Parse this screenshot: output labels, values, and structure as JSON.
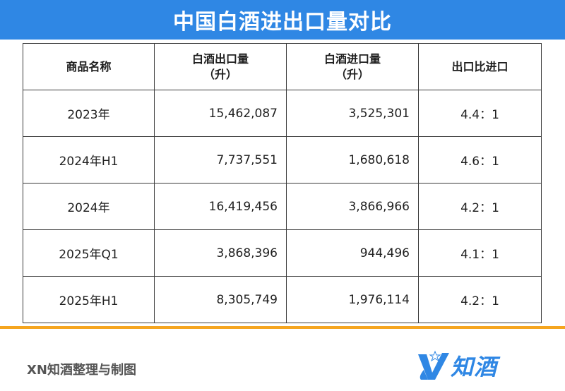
{
  "title": "中国白酒进出口量对比",
  "table": {
    "headers": [
      "商品名称",
      "白酒出口量\n（升）",
      "白酒进口量\n（升）",
      "出口比进口"
    ],
    "rows": [
      [
        "2023年",
        "15,462,087",
        "3,525,301",
        "4.4：1"
      ],
      [
        "2024年H1",
        "7,737,551",
        "1,680,618",
        "4.6：1"
      ],
      [
        "2024年",
        "16,419,456",
        "3,866,966",
        "4.2：1"
      ],
      [
        "2025年Q1",
        "3,868,396",
        "944,496",
        "4.1：1"
      ],
      [
        "2025年H1",
        "8,305,749",
        "1,976,114",
        "4.2：1"
      ]
    ]
  },
  "footer": {
    "credit": "XN知酒整理与制图",
    "logo_text": "知酒",
    "logo_icon": "xn-brand-icon"
  },
  "colors": {
    "title_bar": "#2f87e4",
    "accent_rule": "#f5a51f",
    "logo": "#2f87e4"
  }
}
